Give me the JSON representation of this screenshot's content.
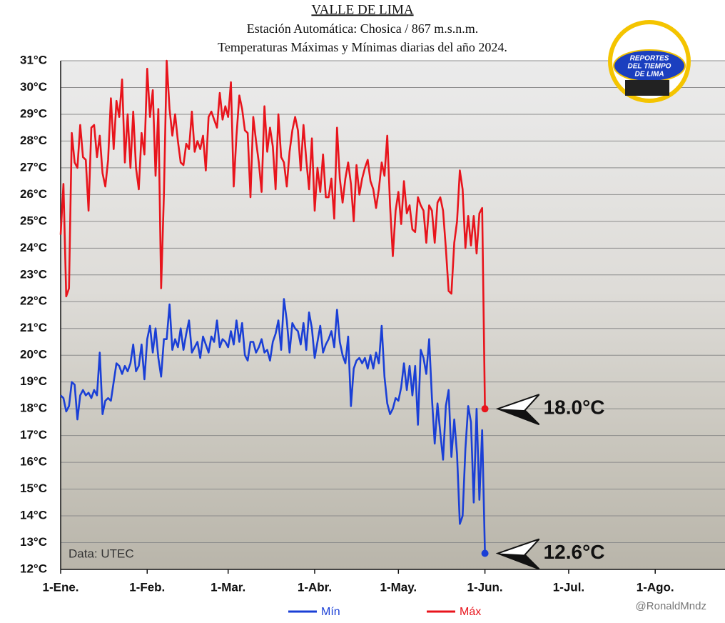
{
  "chart_data": {
    "type": "line",
    "title": "VALLE DE LIMA",
    "subtitle": [
      "Estación Automática: Chosica / 867 m.s.n.m.",
      "Temperaturas Máximas y Mínimas diarias del año 2024."
    ],
    "source": "Data: UTEC",
    "credit": "@RonaldMndz",
    "logo": [
      "REPORTES",
      "DEL TIEMPO",
      "DE LIMA"
    ],
    "x": [
      1,
      2,
      3,
      4,
      5,
      6,
      7,
      8,
      9,
      10,
      11,
      12,
      13,
      14,
      15,
      16,
      17,
      18,
      19,
      20,
      21,
      22,
      23,
      24,
      25,
      26,
      27,
      28,
      29,
      30,
      31,
      32,
      33,
      34,
      35,
      36,
      37,
      38,
      39,
      40,
      41,
      42,
      43,
      44,
      45,
      46,
      47,
      48,
      49,
      50,
      51,
      52,
      53,
      54,
      55,
      56,
      57,
      58,
      59,
      60,
      61,
      62,
      63,
      64,
      65,
      66,
      67,
      68,
      69,
      70,
      71,
      72,
      73,
      74,
      75,
      76,
      77,
      78,
      79,
      80,
      81,
      82,
      83,
      84,
      85,
      86,
      87,
      88,
      89,
      90,
      91,
      92,
      93,
      94,
      95,
      96,
      97,
      98,
      99,
      100,
      101,
      102,
      103,
      104,
      105,
      106,
      107,
      108,
      109,
      110,
      111,
      112,
      113,
      114,
      115,
      116,
      117,
      118,
      119,
      120,
      121,
      122,
      123,
      124,
      125,
      126,
      127,
      128,
      129,
      130,
      131,
      132,
      133,
      134,
      135,
      136,
      137,
      138,
      139,
      140,
      141,
      142,
      143,
      144,
      145,
      146,
      147,
      148,
      149,
      150,
      151,
      152,
      153
    ],
    "xlim": [
      1,
      239
    ],
    "xticks": [
      {
        "value": 1,
        "label": "1-Ene."
      },
      {
        "value": 32,
        "label": "1-Feb."
      },
      {
        "value": 61,
        "label": "1-Mar."
      },
      {
        "value": 92,
        "label": "1-Abr."
      },
      {
        "value": 122,
        "label": "1-May."
      },
      {
        "value": 153,
        "label": "1-Jun."
      },
      {
        "value": 183,
        "label": "1-Jul."
      },
      {
        "value": 214,
        "label": "1-Ago."
      }
    ],
    "ylim": [
      12,
      31
    ],
    "yticks": [
      {
        "value": 12,
        "label": "12°C"
      },
      {
        "value": 13,
        "label": "13°C"
      },
      {
        "value": 14,
        "label": "14°C"
      },
      {
        "value": 15,
        "label": "15°C"
      },
      {
        "value": 16,
        "label": "16°C"
      },
      {
        "value": 17,
        "label": "17°C"
      },
      {
        "value": 18,
        "label": "18°C"
      },
      {
        "value": 19,
        "label": "19°C"
      },
      {
        "value": 20,
        "label": "20°C"
      },
      {
        "value": 21,
        "label": "21°C"
      },
      {
        "value": 22,
        "label": "22°C"
      },
      {
        "value": 23,
        "label": "23°C"
      },
      {
        "value": 24,
        "label": "24°C"
      },
      {
        "value": 25,
        "label": "25°C"
      },
      {
        "value": 26,
        "label": "26°C"
      },
      {
        "value": 27,
        "label": "27°C"
      },
      {
        "value": 28,
        "label": "28°C"
      },
      {
        "value": 29,
        "label": "29°C"
      },
      {
        "value": 30,
        "label": "30°C"
      },
      {
        "value": 31,
        "label": "31°C"
      }
    ],
    "grid": true,
    "series": [
      {
        "name": "Mín",
        "color": "#1a3fd6",
        "values": [
          18.5,
          18.4,
          17.9,
          18.1,
          19.0,
          18.9,
          17.6,
          18.5,
          18.7,
          18.5,
          18.6,
          18.4,
          18.7,
          18.5,
          20.1,
          17.8,
          18.3,
          18.4,
          18.3,
          19.0,
          19.7,
          19.6,
          19.3,
          19.6,
          19.4,
          19.7,
          20.4,
          19.4,
          19.6,
          20.4,
          19.1,
          20.6,
          21.1,
          20.1,
          21.0,
          19.9,
          19.2,
          20.6,
          20.6,
          21.9,
          20.2,
          20.6,
          20.3,
          21.0,
          20.2,
          20.8,
          21.3,
          20.1,
          20.3,
          20.5,
          19.9,
          20.7,
          20.4,
          20.1,
          20.7,
          20.5,
          21.3,
          20.3,
          20.6,
          20.5,
          20.3,
          20.9,
          20.4,
          21.3,
          20.5,
          21.2,
          20.0,
          19.8,
          20.5,
          20.5,
          20.1,
          20.3,
          20.6,
          20.1,
          20.2,
          19.8,
          20.5,
          20.8,
          21.3,
          20.2,
          22.1,
          21.3,
          20.1,
          21.2,
          21.0,
          20.9,
          20.4,
          21.2,
          20.2,
          21.6,
          21.0,
          19.9,
          20.5,
          21.1,
          20.1,
          20.4,
          20.6,
          20.9,
          20.3,
          21.7,
          20.5,
          20.0,
          19.7,
          20.7,
          18.1,
          19.5,
          19.8,
          19.9,
          19.7,
          19.9,
          19.5,
          20.0,
          19.5,
          20.1,
          19.7,
          21.1,
          19.2,
          18.2,
          17.8,
          18.0,
          18.4,
          18.3,
          18.8,
          19.7,
          18.7,
          19.6,
          18.5,
          19.6,
          17.4,
          20.2,
          19.9,
          19.3,
          20.6,
          18.4,
          16.7,
          18.2,
          17.1,
          16.1,
          18.1,
          18.7,
          16.2,
          17.6,
          16.3,
          13.7,
          14.0,
          16.5,
          18.1,
          17.5,
          14.5,
          18.0,
          14.6,
          17.2,
          12.6
        ]
      },
      {
        "name": "Máx",
        "color": "#e8141c",
        "values": [
          24.5,
          26.4,
          22.2,
          22.5,
          28.3,
          27.2,
          27.0,
          28.6,
          27.4,
          27.3,
          25.4,
          28.5,
          28.6,
          27.4,
          28.2,
          26.8,
          26.3,
          27.3,
          29.6,
          27.7,
          29.5,
          28.9,
          30.3,
          27.2,
          29.0,
          27.0,
          29.1,
          27.0,
          26.2,
          28.3,
          27.5,
          30.7,
          28.9,
          29.9,
          26.7,
          29.2,
          22.5,
          26.0,
          31.0,
          29.2,
          28.2,
          29.0,
          28.0,
          27.2,
          27.1,
          27.9,
          27.7,
          29.1,
          27.6,
          28.0,
          27.7,
          28.2,
          26.9,
          28.9,
          29.1,
          28.8,
          28.5,
          29.8,
          28.8,
          29.3,
          28.9,
          30.2,
          26.3,
          28.2,
          29.7,
          29.2,
          28.4,
          28.3,
          25.9,
          28.9,
          28.0,
          27.2,
          26.1,
          29.3,
          27.6,
          28.5,
          27.8,
          26.2,
          29.0,
          27.4,
          27.2,
          26.3,
          27.6,
          28.4,
          28.9,
          28.4,
          26.9,
          28.6,
          27.3,
          26.2,
          28.1,
          25.4,
          27.0,
          26.1,
          27.5,
          25.9,
          25.9,
          26.6,
          25.1,
          28.5,
          26.6,
          25.7,
          26.6,
          27.2,
          26.4,
          25.0,
          27.1,
          26.0,
          26.6,
          27.0,
          27.3,
          26.5,
          26.2,
          25.5,
          26.2,
          27.2,
          26.7,
          28.2,
          25.6,
          23.7,
          25.4,
          26.1,
          24.9,
          26.5,
          25.3,
          25.6,
          24.7,
          24.6,
          25.9,
          25.6,
          25.4,
          24.2,
          25.6,
          25.4,
          24.2,
          25.7,
          25.9,
          25.4,
          24.0,
          22.4,
          22.3,
          24.2,
          25.0,
          26.9,
          26.2,
          24.0,
          25.2,
          24.1,
          25.2,
          23.8,
          25.3,
          25.5,
          18.0
        ]
      }
    ],
    "annotations": [
      {
        "series": 1,
        "value": 18.0,
        "label": "18.0°C"
      },
      {
        "series": 0,
        "value": 12.6,
        "label": "12.6°C"
      }
    ]
  }
}
